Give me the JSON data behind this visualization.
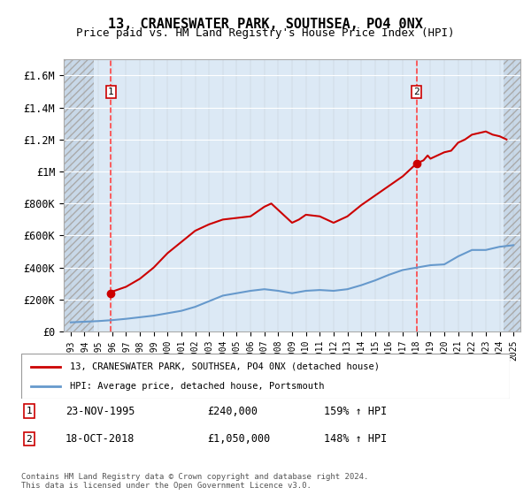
{
  "title": "13, CRANESWATER PARK, SOUTHSEA, PO4 0NX",
  "subtitle": "Price paid vs. HM Land Registry's House Price Index (HPI)",
  "legend_line1": "13, CRANESWATER PARK, SOUTHSEA, PO4 0NX (detached house)",
  "legend_line2": "HPI: Average price, detached house, Portsmouth",
  "annotation1_label": "1",
  "annotation1_date": "23-NOV-1995",
  "annotation1_price": "£240,000",
  "annotation1_hpi": "159% ↑ HPI",
  "annotation2_label": "2",
  "annotation2_date": "18-OCT-2018",
  "annotation2_price": "£1,050,000",
  "annotation2_hpi": "148% ↑ HPI",
  "footer": "Contains HM Land Registry data © Crown copyright and database right 2024.\nThis data is licensed under the Open Government Licence v3.0.",
  "hpi_color": "#6699cc",
  "price_color": "#cc0000",
  "dashed_line_color": "#ff4444",
  "background_plot": "#dce9f5",
  "background_hatch": "#c8d8e8",
  "grid_color": "#ffffff",
  "ylim": [
    0,
    1700000
  ],
  "yticks": [
    0,
    200000,
    400000,
    600000,
    800000,
    1000000,
    1200000,
    1400000,
    1600000
  ],
  "ytick_labels": [
    "£0",
    "£200K",
    "£400K",
    "£600K",
    "£800K",
    "£1M",
    "£1.2M",
    "£1.4M",
    "£1.6M"
  ],
  "x_start_year": 1993,
  "x_end_year": 2025,
  "hpi_years": [
    1993,
    1994,
    1995,
    1996,
    1997,
    1998,
    1999,
    2000,
    2001,
    2002,
    2003,
    2004,
    2005,
    2006,
    2007,
    2008,
    2009,
    2010,
    2011,
    2012,
    2013,
    2014,
    2015,
    2016,
    2017,
    2018,
    2019,
    2020,
    2021,
    2022,
    2023,
    2024,
    2025
  ],
  "hpi_values": [
    58000,
    62000,
    66000,
    72000,
    80000,
    90000,
    100000,
    115000,
    130000,
    155000,
    190000,
    225000,
    240000,
    255000,
    265000,
    255000,
    240000,
    255000,
    260000,
    255000,
    265000,
    290000,
    320000,
    355000,
    385000,
    400000,
    415000,
    420000,
    470000,
    510000,
    510000,
    530000,
    540000
  ],
  "price_years": [
    1993.0,
    1995.9,
    1996,
    1997,
    1998,
    1999,
    2000,
    2001,
    2002,
    2003,
    2004,
    2005,
    2006,
    2007,
    2007.5,
    2008,
    2009,
    2009.5,
    2010,
    2011,
    2012,
    2013,
    2014,
    2015,
    2016,
    2017,
    2017.5,
    2018.0,
    2018.5,
    2018.8,
    2019,
    2019.5,
    2020,
    2020.5,
    2021,
    2021.5,
    2022,
    2022.5,
    2023,
    2023.5,
    2024,
    2024.5
  ],
  "price_values": [
    null,
    240000,
    250000,
    280000,
    330000,
    400000,
    490000,
    560000,
    630000,
    670000,
    700000,
    710000,
    720000,
    780000,
    800000,
    760000,
    680000,
    700000,
    730000,
    720000,
    680000,
    720000,
    790000,
    850000,
    910000,
    970000,
    1010000,
    1050000,
    1070000,
    1100000,
    1080000,
    1100000,
    1120000,
    1130000,
    1180000,
    1200000,
    1230000,
    1240000,
    1250000,
    1230000,
    1220000,
    1200000
  ],
  "sale1_year": 1995.9,
  "sale1_value": 240000,
  "sale2_year": 2018.0,
  "sale2_value": 1050000
}
